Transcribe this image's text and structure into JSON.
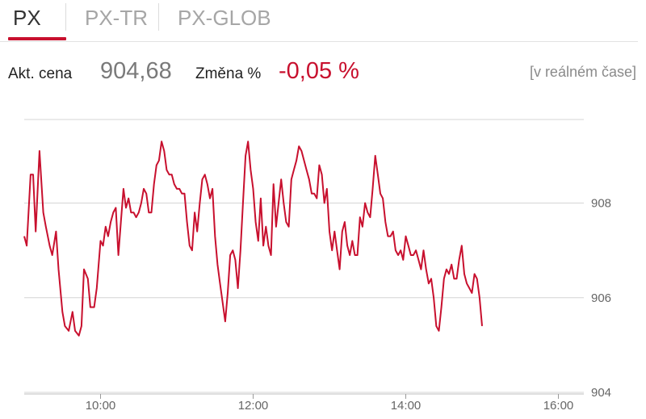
{
  "tabs": [
    {
      "label": "PX",
      "active": true
    },
    {
      "label": "PX-TR",
      "active": false
    },
    {
      "label": "PX-GLOB",
      "active": false
    }
  ],
  "quote": {
    "price_label": "Akt. cena",
    "price_value": "904,68",
    "change_label": "Změna %",
    "change_value": "-0,05 %",
    "realtime_label": "[v reálném čase]"
  },
  "colors": {
    "accent": "#c8102e",
    "grid": "#d4d4d4",
    "muted_text": "#7a7a7a"
  },
  "chart_data": {
    "type": "line",
    "title": "",
    "xlabel": "",
    "ylabel": "",
    "x_ticks": [
      "10:00",
      "12:00",
      "14:00",
      "16:00"
    ],
    "y_ticks": [
      "904",
      "906",
      "908"
    ],
    "xlim": [
      "09:00",
      "16:20"
    ],
    "ylim": [
      904,
      909.8
    ],
    "grid": true,
    "y_axis_side": "right",
    "series": [
      {
        "color": "#c8102e",
        "points": [
          [
            "09:00",
            907.3
          ],
          [
            "09:02",
            907.1
          ],
          [
            "09:05",
            908.6
          ],
          [
            "09:07",
            908.6
          ],
          [
            "09:09",
            907.4
          ],
          [
            "09:12",
            909.1
          ],
          [
            "09:15",
            907.8
          ],
          [
            "09:17",
            907.5
          ],
          [
            "09:20",
            907.1
          ],
          [
            "09:22",
            906.9
          ],
          [
            "09:25",
            907.4
          ],
          [
            "09:27",
            906.6
          ],
          [
            "09:30",
            905.7
          ],
          [
            "09:32",
            905.4
          ],
          [
            "09:35",
            905.3
          ],
          [
            "09:38",
            905.7
          ],
          [
            "09:40",
            905.3
          ],
          [
            "09:43",
            905.2
          ],
          [
            "09:45",
            905.4
          ],
          [
            "09:47",
            906.6
          ],
          [
            "09:50",
            906.4
          ],
          [
            "09:52",
            905.8
          ],
          [
            "09:55",
            905.8
          ],
          [
            "09:57",
            906.2
          ],
          [
            "10:00",
            907.2
          ],
          [
            "10:02",
            907.1
          ],
          [
            "10:04",
            907.5
          ],
          [
            "10:06",
            907.3
          ],
          [
            "10:08",
            907.6
          ],
          [
            "10:10",
            907.8
          ],
          [
            "10:12",
            907.9
          ],
          [
            "10:14",
            906.9
          ],
          [
            "10:16",
            907.6
          ],
          [
            "10:18",
            908.3
          ],
          [
            "10:20",
            907.9
          ],
          [
            "10:22",
            908.1
          ],
          [
            "10:24",
            907.8
          ],
          [
            "10:26",
            907.8
          ],
          [
            "10:28",
            907.7
          ],
          [
            "10:30",
            907.8
          ],
          [
            "10:32",
            908.0
          ],
          [
            "10:34",
            908.3
          ],
          [
            "10:36",
            908.2
          ],
          [
            "10:38",
            907.8
          ],
          [
            "10:40",
            907.8
          ],
          [
            "10:42",
            908.4
          ],
          [
            "10:44",
            908.8
          ],
          [
            "10:46",
            908.9
          ],
          [
            "10:48",
            909.3
          ],
          [
            "10:50",
            909.1
          ],
          [
            "10:52",
            908.7
          ],
          [
            "10:54",
            908.6
          ],
          [
            "10:56",
            908.6
          ],
          [
            "10:58",
            908.4
          ],
          [
            "11:00",
            908.3
          ],
          [
            "11:02",
            908.3
          ],
          [
            "11:04",
            908.2
          ],
          [
            "11:06",
            908.2
          ],
          [
            "11:08",
            907.6
          ],
          [
            "11:10",
            907.1
          ],
          [
            "11:12",
            907.0
          ],
          [
            "11:14",
            907.8
          ],
          [
            "11:16",
            907.4
          ],
          [
            "11:18",
            908.0
          ],
          [
            "11:20",
            908.5
          ],
          [
            "11:22",
            908.6
          ],
          [
            "11:24",
            908.4
          ],
          [
            "11:26",
            908.1
          ],
          [
            "11:28",
            908.3
          ],
          [
            "11:30",
            907.3
          ],
          [
            "11:32",
            906.7
          ],
          [
            "11:34",
            906.3
          ],
          [
            "11:36",
            905.9
          ],
          [
            "11:38",
            905.5
          ],
          [
            "11:40",
            906.1
          ],
          [
            "11:42",
            906.9
          ],
          [
            "11:44",
            907.0
          ],
          [
            "11:46",
            906.8
          ],
          [
            "11:48",
            906.2
          ],
          [
            "11:50",
            907.0
          ],
          [
            "11:52",
            908.0
          ],
          [
            "11:54",
            909.0
          ],
          [
            "11:56",
            909.3
          ],
          [
            "11:58",
            908.7
          ],
          [
            "12:00",
            908.3
          ],
          [
            "12:02",
            907.6
          ],
          [
            "12:04",
            907.2
          ],
          [
            "12:06",
            908.1
          ],
          [
            "12:08",
            907.1
          ],
          [
            "12:10",
            907.5
          ],
          [
            "12:12",
            907.1
          ],
          [
            "12:14",
            906.9
          ],
          [
            "12:16",
            908.4
          ],
          [
            "12:18",
            907.5
          ],
          [
            "12:20",
            908.0
          ],
          [
            "12:22",
            908.5
          ],
          [
            "12:24",
            908.0
          ],
          [
            "12:26",
            907.6
          ],
          [
            "12:28",
            907.5
          ],
          [
            "12:30",
            908.5
          ],
          [
            "12:32",
            908.7
          ],
          [
            "12:34",
            908.9
          ],
          [
            "12:36",
            909.2
          ],
          [
            "12:38",
            909.1
          ],
          [
            "12:40",
            908.9
          ],
          [
            "12:42",
            908.7
          ],
          [
            "12:44",
            908.5
          ],
          [
            "12:46",
            908.2
          ],
          [
            "12:48",
            908.2
          ],
          [
            "12:50",
            908.1
          ],
          [
            "12:52",
            908.8
          ],
          [
            "12:54",
            908.6
          ],
          [
            "12:56",
            908.0
          ],
          [
            "12:58",
            908.3
          ],
          [
            "13:00",
            907.4
          ],
          [
            "13:02",
            907.0
          ],
          [
            "13:04",
            907.4
          ],
          [
            "13:06",
            907.0
          ],
          [
            "13:08",
            906.6
          ],
          [
            "13:10",
            907.4
          ],
          [
            "13:12",
            907.6
          ],
          [
            "13:14",
            907.1
          ],
          [
            "13:16",
            906.9
          ],
          [
            "13:18",
            907.2
          ],
          [
            "13:20",
            906.9
          ],
          [
            "13:22",
            906.9
          ],
          [
            "13:24",
            907.7
          ],
          [
            "13:26",
            907.5
          ],
          [
            "13:28",
            908.0
          ],
          [
            "13:30",
            907.8
          ],
          [
            "13:32",
            907.7
          ],
          [
            "13:34",
            908.3
          ],
          [
            "13:36",
            909.0
          ],
          [
            "13:38",
            908.6
          ],
          [
            "13:40",
            908.2
          ],
          [
            "13:42",
            908.1
          ],
          [
            "13:44",
            907.6
          ],
          [
            "13:46",
            907.3
          ],
          [
            "13:48",
            907.3
          ],
          [
            "13:50",
            907.4
          ],
          [
            "13:52",
            907.0
          ],
          [
            "13:54",
            906.9
          ],
          [
            "13:56",
            907.0
          ],
          [
            "13:58",
            906.8
          ],
          [
            "14:00",
            907.3
          ],
          [
            "14:02",
            907.1
          ],
          [
            "14:04",
            906.9
          ],
          [
            "14:06",
            906.9
          ],
          [
            "14:08",
            907.0
          ],
          [
            "14:10",
            906.8
          ],
          [
            "14:12",
            906.6
          ],
          [
            "14:14",
            907.0
          ],
          [
            "14:16",
            906.6
          ],
          [
            "14:18",
            906.3
          ],
          [
            "14:20",
            906.4
          ],
          [
            "14:22",
            906.0
          ],
          [
            "14:24",
            905.4
          ],
          [
            "14:26",
            905.3
          ],
          [
            "14:28",
            905.8
          ],
          [
            "14:30",
            906.4
          ],
          [
            "14:32",
            906.6
          ],
          [
            "14:34",
            906.5
          ],
          [
            "14:36",
            906.7
          ],
          [
            "14:38",
            906.4
          ],
          [
            "14:40",
            906.4
          ],
          [
            "14:42",
            906.8
          ],
          [
            "14:44",
            907.1
          ],
          [
            "14:46",
            906.5
          ],
          [
            "14:48",
            906.3
          ],
          [
            "14:50",
            906.2
          ],
          [
            "14:52",
            906.1
          ],
          [
            "14:54",
            906.5
          ],
          [
            "14:56",
            906.4
          ],
          [
            "14:58",
            906.0
          ],
          [
            "15:00",
            905.4
          ]
        ]
      }
    ]
  }
}
